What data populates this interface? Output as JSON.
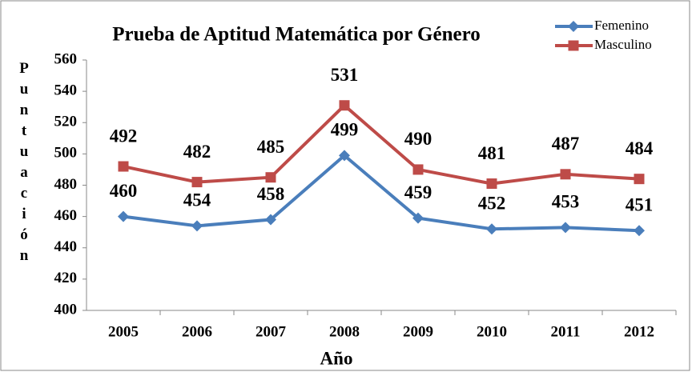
{
  "chart_data": {
    "type": "line",
    "title": "Prueba de Aptitud Matemática por Género",
    "x_label": "Año",
    "y_label": "Puntuación",
    "categories": [
      "2005",
      "2006",
      "2007",
      "2008",
      "2009",
      "2010",
      "2011",
      "2012"
    ],
    "series": [
      {
        "name": "Femenino",
        "color": "#4a7ebb",
        "marker": "diamond",
        "values": [
          460,
          454,
          458,
          499,
          459,
          452,
          453,
          451
        ]
      },
      {
        "name": "Masculino",
        "color": "#be4b48",
        "marker": "square",
        "values": [
          492,
          482,
          485,
          531,
          490,
          481,
          487,
          484
        ]
      }
    ],
    "ylim": [
      400,
      560
    ],
    "yticks": [
      400,
      420,
      440,
      460,
      480,
      500,
      520,
      540,
      560
    ],
    "grid": false,
    "legend": "top-right",
    "data_labels": true
  }
}
